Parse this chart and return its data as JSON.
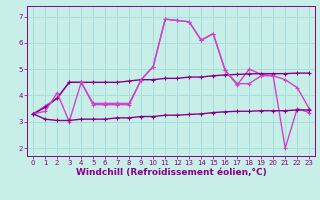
{
  "background_color": "#c8eee8",
  "grid_color": "#aadddd",
  "line_color_bright": "#cc44cc",
  "line_color_dark": "#880088",
  "x_values": [
    0,
    1,
    2,
    3,
    4,
    5,
    6,
    7,
    8,
    9,
    10,
    11,
    12,
    13,
    14,
    15,
    16,
    17,
    18,
    19,
    20,
    21,
    22,
    23
  ],
  "series": [
    {
      "y": [
        3.3,
        3.6,
        3.9,
        4.5,
        4.5,
        3.7,
        3.7,
        3.7,
        3.7,
        4.6,
        5.1,
        6.9,
        6.85,
        6.8,
        6.1,
        6.35,
        4.95,
        4.4,
        5.0,
        4.8,
        4.75,
        4.6,
        4.3,
        3.5
      ],
      "color": "#cc44cc",
      "lw": 1.0,
      "marker": "+"
    },
    {
      "y": [
        3.3,
        3.55,
        3.9,
        4.5,
        4.5,
        4.5,
        4.5,
        4.5,
        4.55,
        4.6,
        4.6,
        4.65,
        4.65,
        4.7,
        4.7,
        4.75,
        4.78,
        4.8,
        4.82,
        4.83,
        4.83,
        4.83,
        4.85,
        4.85
      ],
      "color": "#880088",
      "lw": 1.0,
      "marker": "+"
    },
    {
      "y": [
        3.3,
        3.4,
        4.1,
        3.0,
        4.5,
        3.65,
        3.65,
        3.65,
        3.65,
        4.6,
        5.1,
        6.9,
        6.85,
        6.8,
        6.1,
        6.35,
        4.95,
        4.45,
        4.45,
        4.75,
        4.75,
        2.0,
        3.5,
        3.35
      ],
      "color": "#cc44cc",
      "lw": 1.0,
      "marker": "+"
    },
    {
      "y": [
        3.3,
        3.1,
        3.05,
        3.05,
        3.1,
        3.1,
        3.1,
        3.15,
        3.15,
        3.2,
        3.2,
        3.25,
        3.25,
        3.28,
        3.3,
        3.35,
        3.38,
        3.4,
        3.4,
        3.42,
        3.42,
        3.42,
        3.45,
        3.45
      ],
      "color": "#880088",
      "lw": 1.0,
      "marker": "+"
    }
  ],
  "markersize": 3,
  "xlabel": "Windchill (Refroidissement éolien,°C)",
  "xlabel_fontsize": 6.5,
  "xlim": [
    -0.5,
    23.5
  ],
  "ylim": [
    1.7,
    7.4
  ],
  "yticks": [
    2,
    3,
    4,
    5,
    6,
    7
  ],
  "xticks": [
    0,
    1,
    2,
    3,
    4,
    5,
    6,
    7,
    8,
    9,
    10,
    11,
    12,
    13,
    14,
    15,
    16,
    17,
    18,
    19,
    20,
    21,
    22,
    23
  ],
  "tick_fontsize": 5.0,
  "tick_color": "#880088",
  "spine_color": "#880088",
  "axis_color": "#880088"
}
